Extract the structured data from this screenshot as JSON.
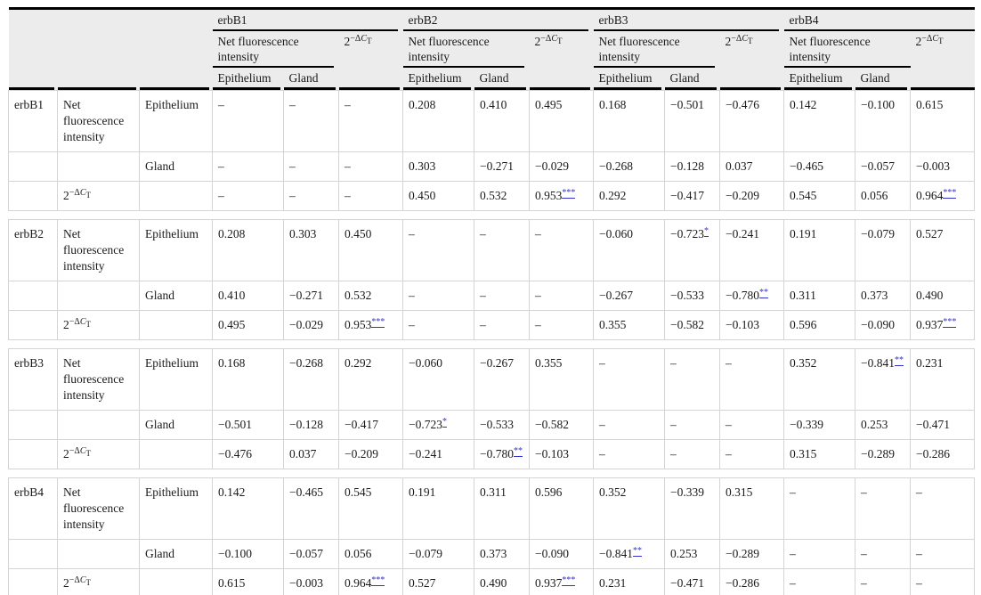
{
  "table": {
    "groups": [
      "erbB1",
      "erbB2",
      "erbB3",
      "erbB4"
    ],
    "measure_label": "Net fluorescence intensity",
    "exp_label": {
      "base": "2",
      "sup_prefix": "−Δ",
      "sup_var": "C",
      "sup_sub": "T"
    },
    "tissue_labels": [
      "Epithelium",
      "Gland"
    ],
    "dash": "–",
    "colors": {
      "link": "#3533cd",
      "header_bg": "#ececec",
      "rule": "#000000",
      "grid": "#d4d4d4"
    },
    "sections": [
      {
        "name": "erbB1",
        "rows": [
          {
            "measure": "nfi",
            "tissue": "Epithelium",
            "values": [
              "–",
              "–",
              "–",
              "0.208",
              "0.410",
              "0.495",
              "0.168",
              "−0.501",
              "−0.476",
              "0.142",
              "−0.100",
              "0.615"
            ]
          },
          {
            "measure": "",
            "tissue": "Gland",
            "values": [
              "–",
              "–",
              "–",
              "0.303",
              "−0.271",
              "−0.029",
              "−0.268",
              "−0.128",
              "0.037",
              "−0.465",
              "−0.057",
              "−0.003"
            ]
          },
          {
            "measure": "exp",
            "tissue": "",
            "values": [
              "–",
              "–",
              "–",
              "0.450",
              "0.532",
              {
                "v": "0.953",
                "s": "***"
              },
              "0.292",
              "−0.417",
              "−0.209",
              "0.545",
              "0.056",
              {
                "v": "0.964",
                "s": "***"
              }
            ]
          }
        ]
      },
      {
        "name": "erbB2",
        "rows": [
          {
            "measure": "nfi",
            "tissue": "Epithelium",
            "values": [
              "0.208",
              "0.303",
              "0.450",
              "–",
              "–",
              "–",
              "−0.060",
              {
                "v": "−0.723",
                "s": "*"
              },
              "−0.241",
              "0.191",
              "−0.079",
              "0.527"
            ]
          },
          {
            "measure": "",
            "tissue": "Gland",
            "values": [
              "0.410",
              "−0.271",
              "0.532",
              "–",
              "–",
              "–",
              "−0.267",
              "−0.533",
              {
                "v": "−0.780",
                "s": "**"
              },
              "0.311",
              "0.373",
              "0.490"
            ]
          },
          {
            "measure": "exp",
            "tissue": "",
            "values": [
              "0.495",
              "−0.029",
              {
                "v": "0.953",
                "s": "***"
              },
              "–",
              "–",
              "–",
              "0.355",
              "−0.582",
              "−0.103",
              "0.596",
              "−0.090",
              {
                "v": "0.937",
                "s": "***"
              }
            ]
          }
        ]
      },
      {
        "name": "erbB3",
        "rows": [
          {
            "measure": "nfi",
            "tissue": "Epithelium",
            "values": [
              "0.168",
              "−0.268",
              "0.292",
              "−0.060",
              "−0.267",
              "0.355",
              "–",
              "–",
              "–",
              "0.352",
              {
                "v": "−0.841",
                "s": "**"
              },
              "0.231"
            ]
          },
          {
            "measure": "",
            "tissue": "Gland",
            "values": [
              "−0.501",
              "−0.128",
              "−0.417",
              {
                "v": "−0.723",
                "s": "*"
              },
              "−0.533",
              "−0.582",
              "–",
              "–",
              "–",
              "−0.339",
              "0.253",
              "−0.471"
            ]
          },
          {
            "measure": "exp",
            "tissue": "",
            "values": [
              "−0.476",
              "0.037",
              "−0.209",
              "−0.241",
              {
                "v": "−0.780",
                "s": "**"
              },
              "−0.103",
              "–",
              "–",
              "–",
              "0.315",
              "−0.289",
              "−0.286"
            ]
          }
        ]
      },
      {
        "name": "erbB4",
        "rows": [
          {
            "measure": "nfi",
            "tissue": "Epithelium",
            "values": [
              "0.142",
              "−0.465",
              "0.545",
              "0.191",
              "0.311",
              "0.596",
              "0.352",
              "−0.339",
              "0.315",
              "–",
              "–",
              "–"
            ]
          },
          {
            "measure": "",
            "tissue": "Gland",
            "values": [
              "−0.100",
              "−0.057",
              "0.056",
              "−0.079",
              "0.373",
              "−0.090",
              {
                "v": "−0.841",
                "s": "**"
              },
              "0.253",
              "−0.289",
              "–",
              "–",
              "–"
            ]
          },
          {
            "measure": "exp",
            "tissue": "",
            "values": [
              "0.615",
              "−0.003",
              {
                "v": "0.964",
                "s": "***"
              },
              "0.527",
              "0.490",
              {
                "v": "0.937",
                "s": "***"
              },
              "0.231",
              "−0.471",
              "−0.286",
              "–",
              "–",
              "–"
            ]
          }
        ]
      }
    ]
  }
}
